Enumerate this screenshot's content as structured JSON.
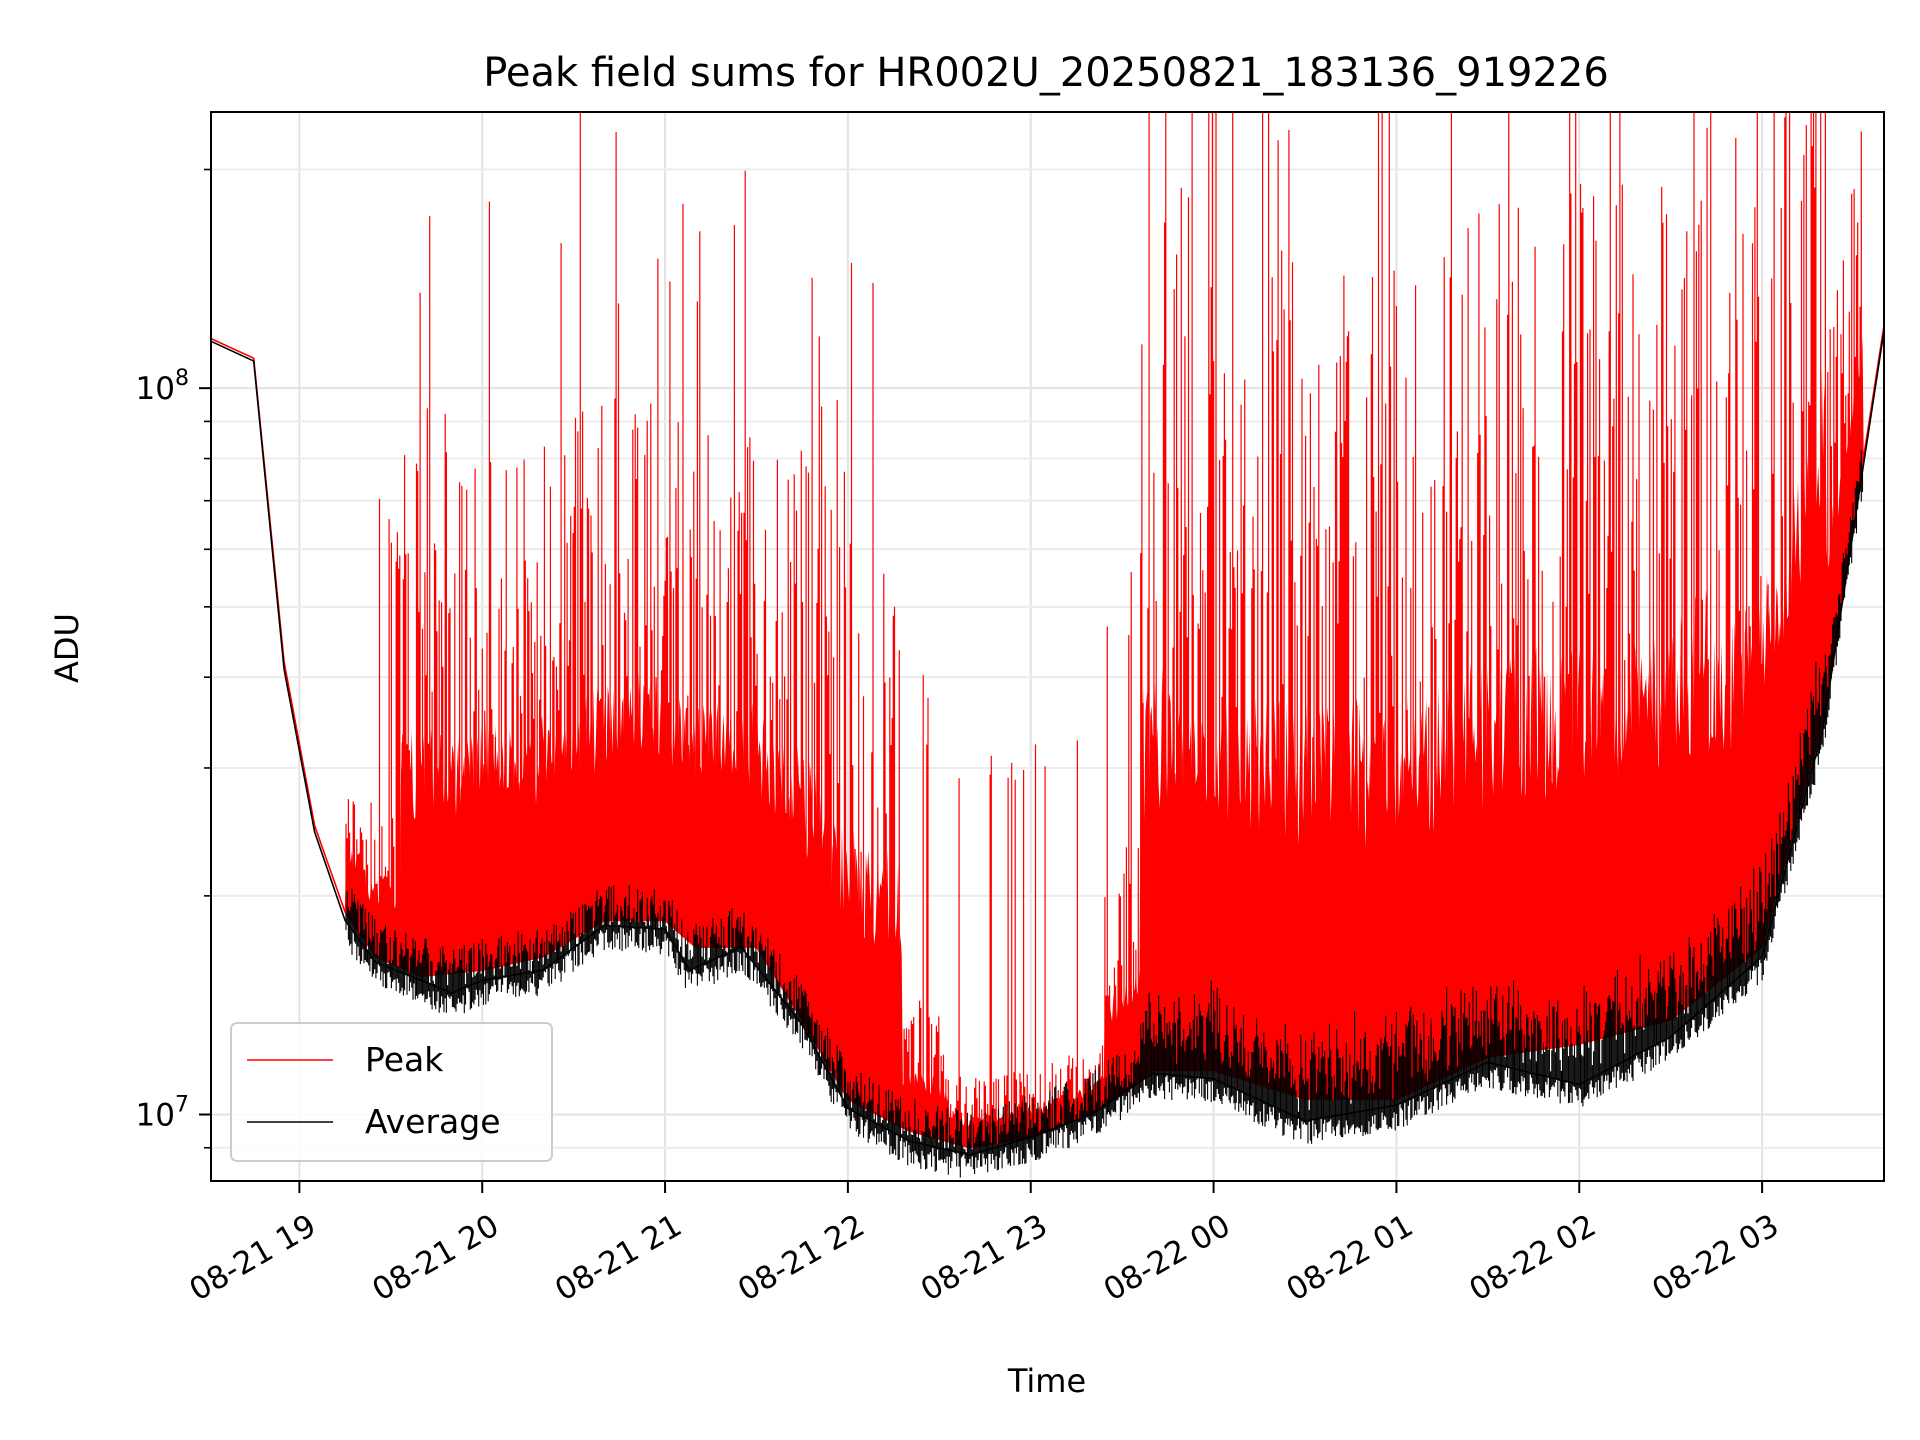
{
  "chart_data": {
    "type": "line",
    "title": "Peak field sums for HR002U_20250821_183136_919226",
    "xlabel": "Time",
    "ylabel": "ADU",
    "yscale": "log",
    "x_axis_type": "datetime",
    "xlim": [
      "2025-08-21 18:31",
      "2025-08-22 03:40"
    ],
    "ylim": [
      8100000,
      240000000
    ],
    "x_tick_labels": [
      "08-21 19",
      "08-21 20",
      "08-21 21",
      "08-21 22",
      "08-21 23",
      "08-22 00",
      "08-22 01",
      "08-22 02",
      "08-22 03"
    ],
    "x_tick_times": [
      "2025-08-21 19:00",
      "2025-08-21 20:00",
      "2025-08-21 21:00",
      "2025-08-21 22:00",
      "2025-08-21 23:00",
      "2025-08-22 00:00",
      "2025-08-22 01:00",
      "2025-08-22 02:00",
      "2025-08-22 03:00"
    ],
    "y_major_ticks": [
      {
        "value": 10000000,
        "base": "10",
        "exp": "7"
      },
      {
        "value": 100000000,
        "base": "10",
        "exp": "8"
      }
    ],
    "y_minor_ticks": [
      9000000,
      20000000,
      30000000,
      40000000,
      50000000,
      60000000,
      70000000,
      80000000,
      90000000,
      200000000
    ],
    "grid": true,
    "legend_position": "lower-left",
    "series": [
      {
        "name": "Peak",
        "color": "#ff0000",
        "points": [
          [
            "2025-08-21 18:31",
            117000000
          ],
          [
            "2025-08-21 18:45",
            110000000
          ],
          [
            "2025-08-21 18:55",
            42000000
          ],
          [
            "2025-08-21 19:05",
            25000000
          ],
          [
            "2025-08-21 19:15",
            19000000
          ],
          [
            "2025-08-21 19:25",
            16500000
          ],
          [
            "2025-08-21 19:40",
            15500000
          ],
          [
            "2025-08-21 20:00",
            15800000
          ],
          [
            "2025-08-21 20:20",
            16500000
          ],
          [
            "2025-08-21 20:40",
            18500000
          ],
          [
            "2025-08-21 21:00",
            18500000
          ],
          [
            "2025-08-21 21:10",
            17000000
          ],
          [
            "2025-08-21 21:30",
            17000000
          ],
          [
            "2025-08-21 21:45",
            13500000
          ],
          [
            "2025-08-21 22:00",
            10500000
          ],
          [
            "2025-08-21 22:20",
            9500000
          ],
          [
            "2025-08-21 22:40",
            9000000
          ],
          [
            "2025-08-21 23:00",
            9300000
          ],
          [
            "2025-08-21 23:20",
            10000000
          ],
          [
            "2025-08-21 23:40",
            11500000
          ],
          [
            "2025-08-22 00:00",
            11500000
          ],
          [
            "2025-08-22 00:30",
            10500000
          ],
          [
            "2025-08-22 01:00",
            10500000
          ],
          [
            "2025-08-22 01:30",
            12000000
          ],
          [
            "2025-08-22 02:00",
            12500000
          ],
          [
            "2025-08-22 02:30",
            13500000
          ],
          [
            "2025-08-22 03:00",
            17000000
          ],
          [
            "2025-08-22 03:20",
            35000000
          ],
          [
            "2025-08-22 03:40",
            122000000
          ]
        ]
      },
      {
        "name": "Average",
        "color": "#000000",
        "points": [
          [
            "2025-08-21 18:31",
            116000000
          ],
          [
            "2025-08-21 18:45",
            109000000
          ],
          [
            "2025-08-21 18:55",
            41000000
          ],
          [
            "2025-08-21 19:05",
            24500000
          ],
          [
            "2025-08-21 19:15",
            18500000
          ],
          [
            "2025-08-21 19:25",
            16200000
          ],
          [
            "2025-08-21 19:40",
            15300000
          ],
          [
            "2025-08-21 19:50",
            14700000
          ],
          [
            "2025-08-21 20:00",
            15300000
          ],
          [
            "2025-08-21 20:20",
            15800000
          ],
          [
            "2025-08-21 20:40",
            18200000
          ],
          [
            "2025-08-21 21:00",
            18000000
          ],
          [
            "2025-08-21 21:08",
            15800000
          ],
          [
            "2025-08-21 21:25",
            17000000
          ],
          [
            "2025-08-21 21:45",
            13300000
          ],
          [
            "2025-08-21 22:00",
            10200000
          ],
          [
            "2025-08-21 22:20",
            9200000
          ],
          [
            "2025-08-21 22:40",
            8800000
          ],
          [
            "2025-08-21 23:00",
            9300000
          ],
          [
            "2025-08-21 23:20",
            10000000
          ],
          [
            "2025-08-21 23:40",
            11400000
          ],
          [
            "2025-08-22 00:00",
            11200000
          ],
          [
            "2025-08-22 00:30",
            9800000
          ],
          [
            "2025-08-22 01:00",
            10300000
          ],
          [
            "2025-08-22 01:30",
            11800000
          ],
          [
            "2025-08-22 02:00",
            11000000
          ],
          [
            "2025-08-22 02:30",
            12800000
          ],
          [
            "2025-08-22 03:00",
            16500000
          ],
          [
            "2025-08-22 03:20",
            34000000
          ],
          [
            "2025-08-22 03:40",
            120000000
          ]
        ]
      }
    ]
  }
}
